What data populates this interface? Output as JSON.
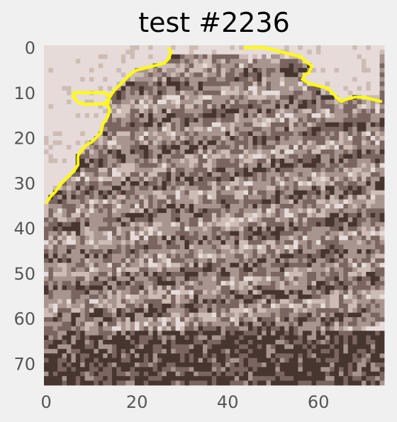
{
  "chart_data": {
    "type": "heatmap",
    "title": "test #2236",
    "xlabel": "",
    "ylabel": "",
    "xlim": [
      0,
      74
    ],
    "ylim": [
      74,
      0
    ],
    "x_ticks": [
      "0",
      "20",
      "40",
      "60"
    ],
    "y_ticks": [
      "0",
      "10",
      "20",
      "30",
      "40",
      "50",
      "60",
      "70"
    ],
    "grid": false,
    "colormap": [
      "#473530",
      "#7a6560",
      "#a8958f",
      "#cdbcb5",
      "#e6dbd8"
    ],
    "contour_color": "#ffff00",
    "contour": [
      [
        0,
        34.5
      ],
      [
        1,
        33
      ],
      [
        2,
        32
      ],
      [
        3,
        30.5
      ],
      [
        4,
        29.5
      ],
      [
        5,
        28.5
      ],
      [
        6,
        27.5
      ],
      [
        7,
        26
      ],
      [
        7,
        24
      ],
      [
        8,
        22.5
      ],
      [
        9,
        21.5
      ],
      [
        10,
        21
      ],
      [
        11,
        20
      ],
      [
        12,
        19
      ],
      [
        12.5,
        17
      ],
      [
        13.5,
        15.5
      ],
      [
        14,
        14
      ],
      [
        13.5,
        12.5
      ],
      [
        14,
        11
      ],
      [
        15,
        9.5
      ],
      [
        16,
        8.5
      ],
      [
        17,
        7.5
      ],
      [
        18,
        6.5
      ],
      [
        19,
        5.5
      ],
      [
        20,
        5
      ],
      [
        22,
        4.5
      ],
      [
        24,
        4
      ],
      [
        26,
        3.5
      ],
      [
        27,
        2.5
      ],
      [
        27.5,
        1
      ],
      [
        27,
        0
      ]
    ],
    "contour_island": [
      [
        6,
        10
      ],
      [
        9,
        10
      ],
      [
        11,
        10
      ],
      [
        13,
        10
      ],
      [
        14,
        11
      ],
      [
        13,
        12.5
      ],
      [
        11,
        12.5
      ],
      [
        8,
        12.5
      ],
      [
        7,
        12
      ],
      [
        6,
        11
      ],
      [
        6,
        10
      ]
    ],
    "contour_right": [
      [
        43.5,
        0
      ],
      [
        48,
        0
      ],
      [
        50,
        0.5
      ],
      [
        52,
        1
      ],
      [
        54,
        1.5
      ],
      [
        56,
        2
      ],
      [
        57,
        3
      ],
      [
        58.5,
        4
      ],
      [
        58,
        5.5
      ],
      [
        57,
        6
      ],
      [
        56.5,
        7
      ],
      [
        58,
        8
      ],
      [
        60,
        8.5
      ],
      [
        62,
        9
      ],
      [
        63,
        10
      ],
      [
        64,
        11
      ],
      [
        65,
        12
      ],
      [
        66,
        11.5
      ],
      [
        68,
        11
      ],
      [
        70,
        11
      ],
      [
        72,
        11.5
      ],
      [
        74,
        12
      ]
    ]
  }
}
